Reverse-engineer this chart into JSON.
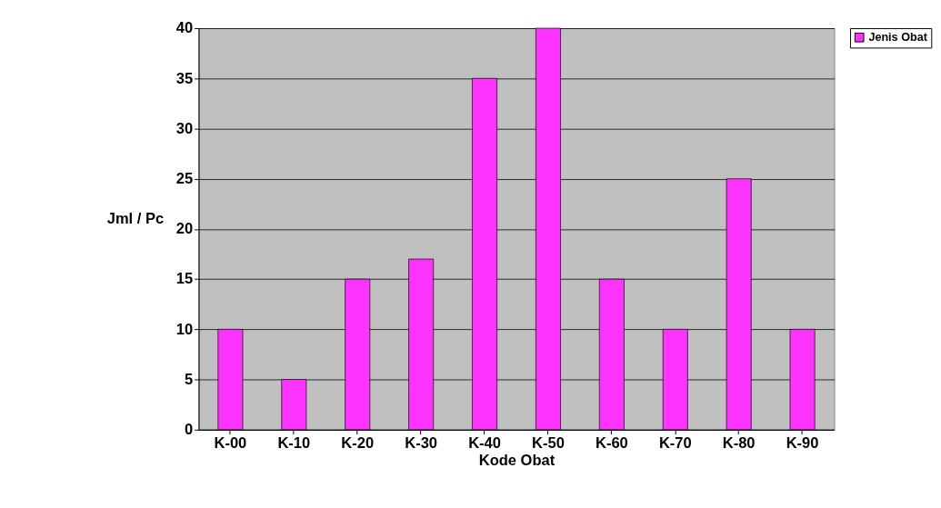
{
  "chart_data": {
    "type": "bar",
    "xlabel": "Kode Obat",
    "ylabel": "Jml / Pc",
    "categories": [
      "K-00",
      "K-10",
      "K-20",
      "K-30",
      "K-40",
      "K-50",
      "K-60",
      "K-70",
      "K-80",
      "K-90"
    ],
    "series": [
      {
        "name": "Jenis Obat",
        "color": "#ff33ff",
        "values": [
          10,
          5,
          15,
          17,
          35,
          40,
          15,
          10,
          25,
          10
        ]
      }
    ],
    "ylim": [
      0,
      40
    ],
    "yticks": [
      0,
      5,
      10,
      15,
      20,
      25,
      30,
      35,
      40
    ],
    "grid": "y",
    "legend": "right"
  }
}
